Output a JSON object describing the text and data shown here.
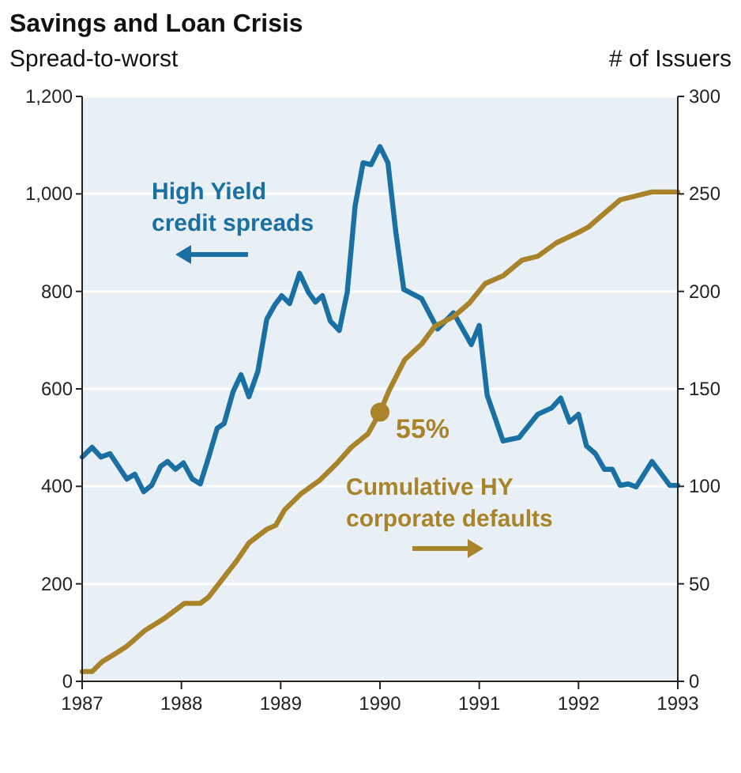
{
  "chart_data": {
    "type": "line",
    "title": "Savings and Loan Crisis",
    "ylabel": "Spread-to-worst",
    "y2label": "# of Issuers",
    "xlim": [
      1987,
      1993
    ],
    "xticks": [
      1987,
      1988,
      1989,
      1990,
      1991,
      1992,
      1993
    ],
    "ylim": [
      0,
      1200
    ],
    "yticks": [
      0,
      200,
      400,
      600,
      800,
      {
        "value": 1000,
        "label": "1,000"
      },
      {
        "value": 1200,
        "label": "1,200"
      }
    ],
    "y2lim": [
      0,
      300
    ],
    "y2ticks": [
      0,
      50,
      100,
      150,
      200,
      250,
      300
    ],
    "grid": "y",
    "marker": "none",
    "line_style": "solid",
    "series": [
      {
        "name": "High Yield credit spreads",
        "color": "#1a6fa3",
        "x": [
          1987.0,
          1987.1,
          1987.19,
          1987.28,
          1987.45,
          1987.53,
          1987.62,
          1987.7,
          1987.79,
          1987.86,
          1987.94,
          1988.02,
          1988.11,
          1988.19,
          1988.27,
          1988.36,
          1988.43,
          1988.52,
          1988.6,
          1988.68,
          1988.77,
          1988.86,
          1988.94,
          1989.01,
          1989.09,
          1989.19,
          1989.28,
          1989.35,
          1989.42,
          1989.5,
          1989.59,
          1989.67,
          1989.75,
          1989.83,
          1989.91,
          1990.0,
          1990.08,
          1990.16,
          1990.24,
          1990.42,
          1990.58,
          1990.74,
          1990.92,
          1991.0,
          1991.08,
          1991.24,
          1991.4,
          1991.59,
          1991.73,
          1991.82,
          1991.91,
          1992.0,
          1992.08,
          1992.17,
          1992.26,
          1992.34,
          1992.42,
          1992.5,
          1992.58,
          1992.74,
          1992.92,
          1993.0
        ],
        "values": [
          460,
          480,
          460,
          467,
          415,
          425,
          389,
          402,
          441,
          451,
          435,
          448,
          415,
          405,
          457,
          519,
          529,
          594,
          629,
          584,
          636,
          743,
          772,
          791,
          775,
          837,
          798,
          778,
          791,
          739,
          720,
          798,
          976,
          1064,
          1060,
          1097,
          1064,
          921,
          804,
          785,
          723,
          756,
          691,
          730,
          587,
          493,
          500,
          548,
          561,
          581,
          532,
          548,
          483,
          467,
          435,
          435,
          402,
          405,
          399,
          451,
          402,
          402
        ]
      },
      {
        "name": "Cumulative HY corporate defaults",
        "color": "#a8832a",
        "axis": "y2",
        "x": [
          1987.0,
          1987.1,
          1987.2,
          1987.36,
          1987.45,
          1987.63,
          1987.82,
          1988.03,
          1988.19,
          1988.27,
          1988.56,
          1988.68,
          1988.86,
          1988.95,
          1989.04,
          1989.2,
          1989.39,
          1989.57,
          1989.71,
          1989.88,
          1990.0,
          1990.09,
          1990.25,
          1990.42,
          1990.55,
          1990.74,
          1990.9,
          1991.06,
          1991.24,
          1991.43,
          1991.59,
          1991.78,
          1991.99,
          1992.1,
          1992.26,
          1992.42,
          1992.74,
          1993.0
        ],
        "values": [
          5,
          5,
          10,
          15,
          18,
          26,
          32,
          40,
          40,
          43,
          62,
          71,
          78,
          80,
          88,
          96,
          103,
          112,
          120,
          127,
          138,
          149,
          165,
          173,
          182,
          187,
          194,
          204,
          208,
          216,
          218,
          225,
          230,
          233,
          240,
          247,
          251,
          251
        ]
      },
      {
        "type": "scatter",
        "color": "#a8832a",
        "axis": "y2",
        "marker": "circle",
        "x": [
          1990.0
        ],
        "values": [
          138
        ]
      }
    ],
    "annotations": [
      "55%"
    ]
  }
}
